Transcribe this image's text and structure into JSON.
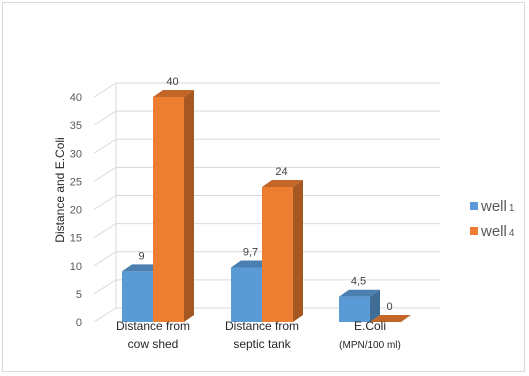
{
  "chart_data": {
    "type": "bar",
    "style": "3d-clustered-column",
    "categories": [
      {
        "line1": "Distance from",
        "line2": "cow shed"
      },
      {
        "line1": "Distance from",
        "line2": "septic tank"
      },
      {
        "line1": "E.Coli",
        "line2": "(MPN/100 ml)"
      }
    ],
    "series": [
      {
        "name": "well",
        "name_sub": "1",
        "color": "#5b9bd5",
        "values": [
          9,
          9.7,
          4.5
        ],
        "labels": [
          "9",
          "9,7",
          "4,5"
        ]
      },
      {
        "name": "well",
        "name_sub": "4",
        "color": "#ed7d31",
        "values": [
          40,
          24,
          0
        ],
        "labels": [
          "40",
          "24",
          "0"
        ]
      }
    ],
    "ylabel": "Distance and E.Coli",
    "ylim": [
      0,
      40
    ],
    "yticks": [
      "0",
      "5",
      "10",
      "15",
      "20",
      "25",
      "30",
      "35",
      "40"
    ],
    "grid": true,
    "legend_position": "right"
  }
}
